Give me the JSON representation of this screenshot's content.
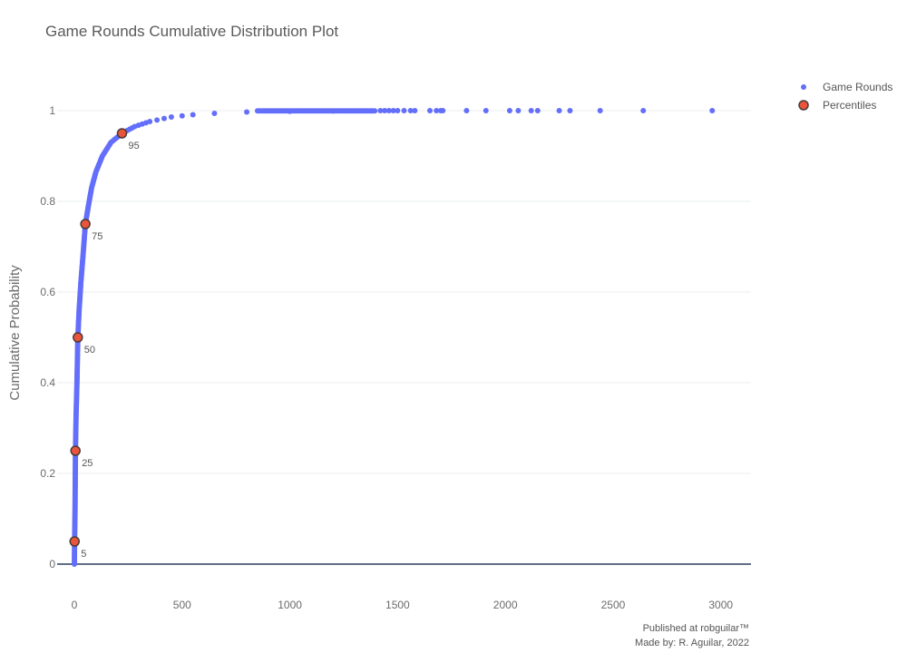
{
  "chart_data": {
    "type": "scatter",
    "title": "Game Rounds Cumulative Distribution Plot",
    "xlabel": "",
    "ylabel": "Cumulative Probability",
    "xlim": [
      -80,
      3140
    ],
    "ylim": [
      -0.06,
      1.08
    ],
    "x_ticks": [
      0,
      500,
      1000,
      1500,
      2000,
      2500,
      3000
    ],
    "y_ticks": [
      0,
      0.2,
      0.4,
      0.6,
      0.8,
      1
    ],
    "y_tick_labels": [
      "0",
      "0.2",
      "0.4",
      "0.6",
      "0.8",
      "1"
    ],
    "grid": true,
    "legend_position": "top-right",
    "series": [
      {
        "name": "Game Rounds",
        "kind": "cdf-markers",
        "color": "#636efa",
        "curve_points": [
          [
            0,
            0
          ],
          [
            1,
            0.05
          ],
          [
            3,
            0.12
          ],
          [
            5,
            0.25
          ],
          [
            8,
            0.33
          ],
          [
            12,
            0.4
          ],
          [
            16,
            0.5
          ],
          [
            22,
            0.56
          ],
          [
            30,
            0.62
          ],
          [
            40,
            0.68
          ],
          [
            51,
            0.75
          ],
          [
            65,
            0.79
          ],
          [
            80,
            0.83
          ],
          [
            100,
            0.865
          ],
          [
            130,
            0.9
          ],
          [
            170,
            0.93
          ],
          [
            221,
            0.95
          ],
          [
            280,
            0.965
          ],
          [
            350,
            0.976
          ],
          [
            450,
            0.986
          ],
          [
            550,
            0.991
          ],
          [
            650,
            0.994
          ],
          [
            800,
            0.997
          ],
          [
            1000,
            0.9985
          ],
          [
            1200,
            0.9993
          ],
          [
            1400,
            0.9997
          ]
        ],
        "tail_points": [
          1420,
          1440,
          1460,
          1480,
          1500,
          1530,
          1560,
          1580,
          1650,
          1680,
          1700,
          1710,
          1820,
          1910,
          2020,
          2060,
          2120,
          2150,
          2250,
          2300,
          2440,
          2640,
          2960
        ]
      },
      {
        "name": "Percentiles",
        "color": "#e8553b",
        "edge_color": "#4a3a3a",
        "points": [
          {
            "x": 1,
            "y": 0.05,
            "label": "5"
          },
          {
            "x": 5,
            "y": 0.25,
            "label": "25"
          },
          {
            "x": 16,
            "y": 0.5,
            "label": "50"
          },
          {
            "x": 51,
            "y": 0.75,
            "label": "75"
          },
          {
            "x": 221,
            "y": 0.95,
            "label": "95"
          }
        ]
      }
    ]
  },
  "credits": {
    "line1": "Published at robguilar™",
    "line2": "Made by:  R. Aguilar, 2022"
  },
  "colors": {
    "grid": "#ebedf0",
    "zeroline": "#2a3f5f",
    "text": "#5a5a5a"
  }
}
